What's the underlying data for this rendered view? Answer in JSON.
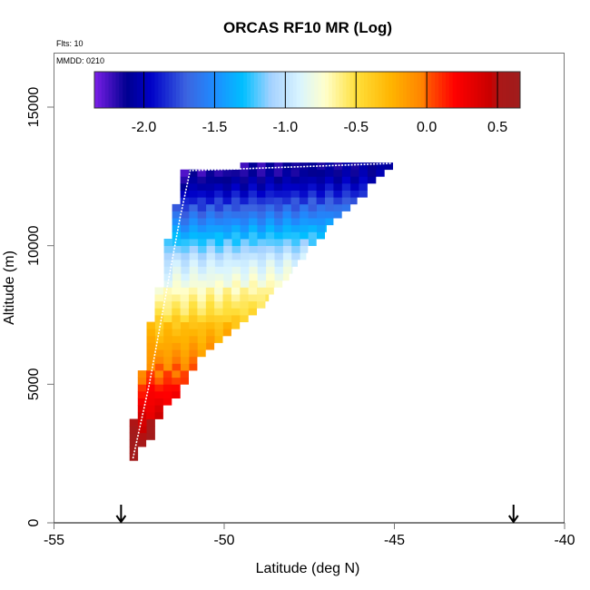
{
  "chart_data": {
    "type": "heatmap",
    "title": "ORCAS RF10 MR (Log)",
    "flights_label": "Flts: 10",
    "date_label": "MMDD: 0210",
    "xlabel": "Latitude (deg N)",
    "ylabel": "Altitude (m)",
    "xlim": [
      -55,
      -40
    ],
    "ylim": [
      0,
      16800
    ],
    "xticks": [
      -55,
      -50,
      -45,
      -40
    ],
    "xtick_labels": [
      "-55",
      "-50",
      "-45",
      "-40"
    ],
    "yticks": [
      0,
      5000,
      10000,
      15000
    ],
    "ytick_labels": [
      "0",
      "5000",
      "10000",
      "15000"
    ],
    "colorbar": {
      "range": [
        -2.35,
        0.66
      ],
      "ticks": [
        -2.0,
        -1.5,
        -1.0,
        -0.5,
        0.0,
        0.5
      ],
      "tick_labels": [
        "-2.0",
        "-1.5",
        "-1.0",
        "-0.5",
        "0.0",
        "0.5"
      ],
      "stops": [
        [
          -2.35,
          "#7b1fe8"
        ],
        [
          -2.12,
          "#000090"
        ],
        [
          -1.95,
          "#0000c8"
        ],
        [
          -1.7,
          "#3c64e0"
        ],
        [
          -1.5,
          "#1e8cff"
        ],
        [
          -1.3,
          "#00bfff"
        ],
        [
          -1.1,
          "#a6d2ff"
        ],
        [
          -0.9,
          "#d8f4ff"
        ],
        [
          -0.72,
          "#ffffcc"
        ],
        [
          -0.5,
          "#ffe03c"
        ],
        [
          -0.25,
          "#ffb400"
        ],
        [
          -0.02,
          "#ff8000"
        ],
        [
          0.02,
          "#ff5000"
        ],
        [
          0.2,
          "#ff0000"
        ],
        [
          0.45,
          "#c80000"
        ],
        [
          0.52,
          "#aa1818"
        ],
        [
          0.66,
          "#a01c1c"
        ]
      ]
    },
    "cell_width_deg": 0.25,
    "row_height_m": 250,
    "rows_columns": [
      "alt_bottom_m",
      "lat_min",
      "lat_max",
      "mean_log_mr"
    ],
    "rows": [
      [
        2250,
        -52.78,
        -52.54,
        0.62
      ],
      [
        2500,
        -52.78,
        -52.54,
        0.6
      ],
      [
        2750,
        -52.78,
        -52.3,
        0.58
      ],
      [
        3000,
        -52.78,
        -52.04,
        0.55
      ],
      [
        3250,
        -52.78,
        -52.04,
        0.5
      ],
      [
        3500,
        -52.78,
        -52.04,
        0.45
      ],
      [
        3750,
        -52.54,
        -51.8,
        0.35
      ],
      [
        4000,
        -52.54,
        -51.8,
        0.3
      ],
      [
        4250,
        -52.54,
        -51.55,
        0.25
      ],
      [
        4500,
        -52.54,
        -51.3,
        0.2
      ],
      [
        4750,
        -52.54,
        -51.3,
        0.15
      ],
      [
        5000,
        -52.54,
        -51.05,
        0.05
      ],
      [
        5250,
        -52.54,
        -51.05,
        0.0
      ],
      [
        5500,
        -52.28,
        -50.8,
        -0.05
      ],
      [
        5750,
        -52.28,
        -50.8,
        -0.1
      ],
      [
        6000,
        -52.28,
        -50.55,
        -0.15
      ],
      [
        6250,
        -52.28,
        -50.3,
        -0.2
      ],
      [
        6500,
        -52.28,
        -50.05,
        -0.25
      ],
      [
        6750,
        -52.28,
        -49.8,
        -0.3
      ],
      [
        7000,
        -52.28,
        -49.55,
        -0.35
      ],
      [
        7250,
        -52.04,
        -49.3,
        -0.45
      ],
      [
        7500,
        -52.04,
        -49.05,
        -0.55
      ],
      [
        7750,
        -52.04,
        -48.8,
        -0.6
      ],
      [
        8000,
        -52.04,
        -48.7,
        -0.66
      ],
      [
        8250,
        -52.04,
        -48.55,
        -0.72
      ],
      [
        8500,
        -51.77,
        -48.3,
        -0.8
      ],
      [
        8750,
        -51.77,
        -48.1,
        -0.86
      ],
      [
        9000,
        -51.77,
        -48.0,
        -0.92
      ],
      [
        9250,
        -51.77,
        -47.85,
        -0.98
      ],
      [
        9500,
        -51.77,
        -47.6,
        -1.06
      ],
      [
        9750,
        -51.77,
        -47.55,
        -1.16
      ],
      [
        10000,
        -51.77,
        -47.3,
        -1.26
      ],
      [
        10250,
        -51.53,
        -47.05,
        -1.36
      ],
      [
        10500,
        -51.53,
        -47.0,
        -1.46
      ],
      [
        10750,
        -51.53,
        -46.8,
        -1.56
      ],
      [
        11000,
        -51.53,
        -46.55,
        -1.66
      ],
      [
        11250,
        -51.53,
        -46.3,
        -1.76
      ],
      [
        11500,
        -51.29,
        -46.1,
        -1.86
      ],
      [
        11750,
        -51.29,
        -45.8,
        -1.96
      ],
      [
        12000,
        -51.29,
        -45.8,
        -2.05
      ],
      [
        12250,
        -51.29,
        -45.55,
        -2.13
      ],
      [
        12500,
        -51.29,
        -45.3,
        -2.2
      ],
      [
        12750,
        -49.53,
        -45.05,
        -2.18
      ]
    ],
    "flight_track": [
      [
        -52.68,
        2325
      ],
      [
        -52.2,
        5000
      ],
      [
        -51.75,
        8000
      ],
      [
        -51.3,
        11000
      ],
      [
        -51.0,
        12710
      ],
      [
        -48.0,
        12840
      ],
      [
        -45.07,
        12970
      ]
    ],
    "markers": [
      {
        "lat": -53.03,
        "symbol": "down-arrow"
      },
      {
        "lat": -41.5,
        "symbol": "down-arrow"
      }
    ]
  }
}
